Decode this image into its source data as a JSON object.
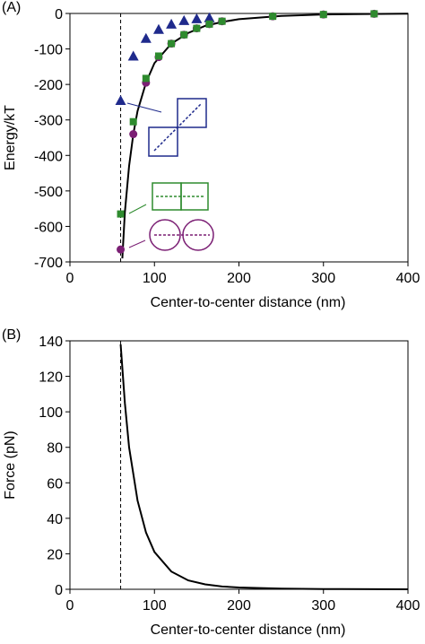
{
  "chart_data": [
    {
      "type": "scatter",
      "panel_label": "(A)",
      "xlabel": "Center-to-center distance (nm)",
      "ylabel": "Energy/kT",
      "xlim": [
        0,
        400
      ],
      "ylim": [
        -700,
        0
      ],
      "xticks": [
        0,
        100,
        200,
        300,
        400
      ],
      "yticks": [
        -700,
        -600,
        -500,
        -400,
        -300,
        -200,
        -100,
        0
      ],
      "vline": 60,
      "series": [
        {
          "marker": "line",
          "color": "#000000",
          "x": [
            62,
            65,
            70,
            75,
            80,
            90,
            100,
            120,
            140,
            160,
            180,
            200,
            250,
            300,
            350,
            400
          ],
          "values": [
            -690,
            -560,
            -430,
            -340,
            -275,
            -195,
            -140,
            -85,
            -55,
            -35,
            -24,
            -16,
            -7,
            -3,
            -1.5,
            -0.5
          ]
        },
        {
          "marker": "triangle",
          "color": "#1f2a8c",
          "x": [
            60,
            75,
            90,
            105,
            120,
            135,
            150,
            165
          ],
          "values": [
            -245,
            -120,
            -70,
            -45,
            -30,
            -20,
            -15,
            -12
          ]
        },
        {
          "marker": "circle",
          "color": "#7b1f74",
          "x": [
            60,
            75,
            90,
            105,
            120,
            135,
            150,
            165,
            180,
            240,
            300,
            360
          ],
          "values": [
            -665,
            -340,
            -195,
            -123,
            -85,
            -60,
            -42,
            -30,
            -22,
            -8,
            -3,
            -1
          ]
        },
        {
          "marker": "square",
          "color": "#2e8b2e",
          "x": [
            60,
            75,
            90,
            105,
            120,
            135,
            150,
            165,
            180,
            240,
            300,
            360
          ],
          "values": [
            -565,
            -305,
            -183,
            -120,
            -85,
            -60,
            -42,
            -30,
            -22,
            -8,
            -3,
            -1
          ]
        }
      ]
    },
    {
      "type": "line",
      "panel_label": "(B)",
      "xlabel": "Center-to-center distance (nm)",
      "ylabel": "Force (pN)",
      "xlim": [
        0,
        400
      ],
      "ylim": [
        0,
        140
      ],
      "xticks": [
        0,
        100,
        200,
        300,
        400
      ],
      "yticks": [
        0,
        20,
        40,
        60,
        80,
        100,
        120,
        140
      ],
      "vline": 60,
      "series": [
        {
          "marker": "line",
          "color": "#000000",
          "x": [
            60,
            65,
            70,
            80,
            90,
            100,
            120,
            140,
            160,
            180,
            200,
            250,
            300,
            400
          ],
          "values": [
            138,
            105,
            80,
            50,
            32,
            21,
            10,
            5,
            2.8,
            1.6,
            1,
            0.4,
            0.15,
            0
          ]
        }
      ]
    }
  ]
}
